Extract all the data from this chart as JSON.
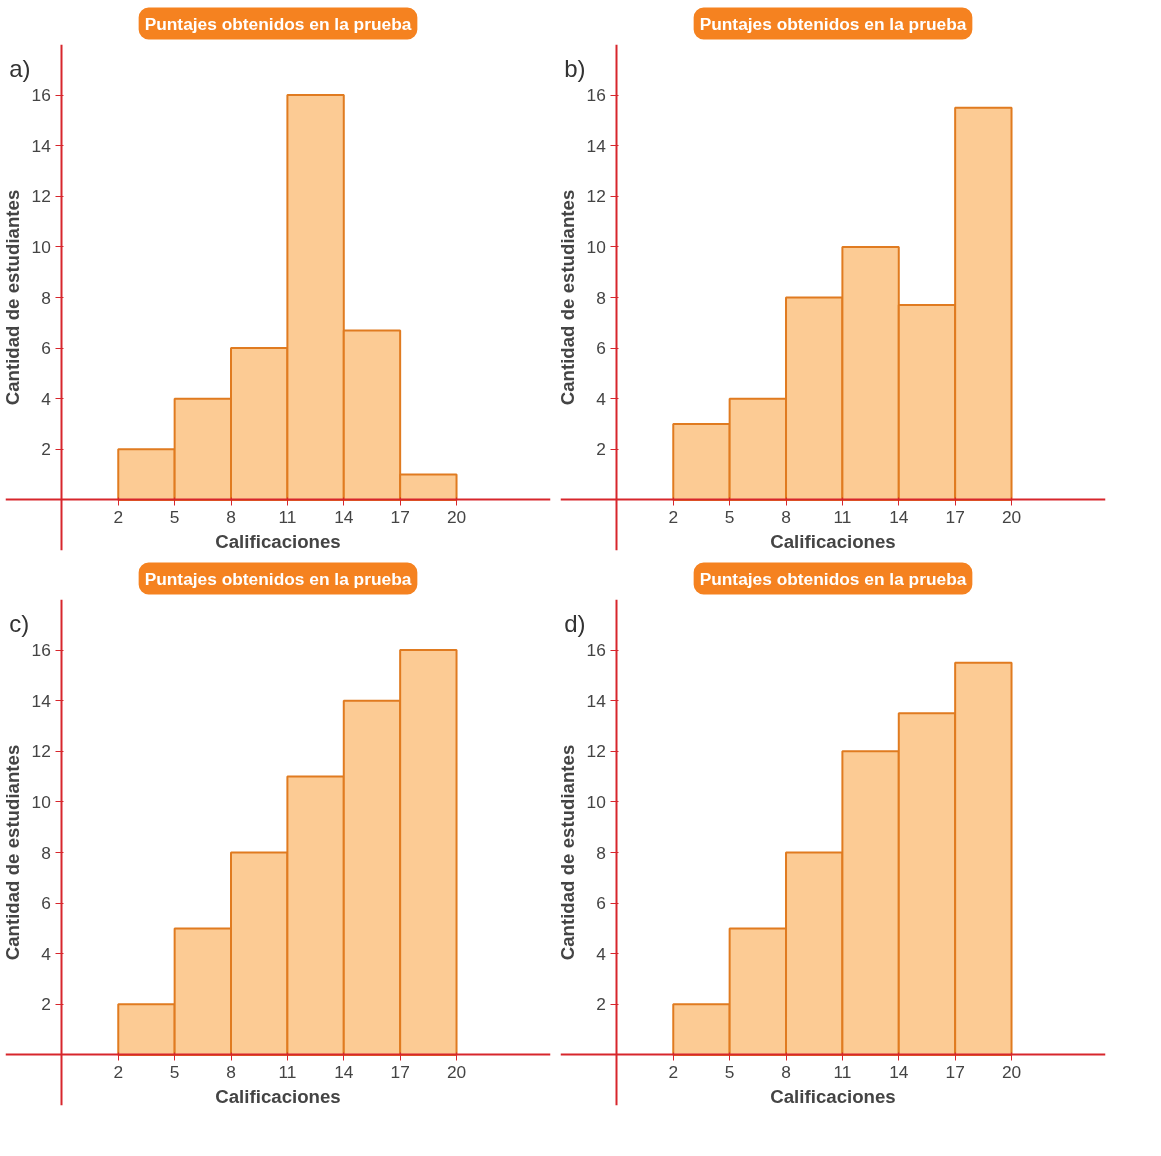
{
  "chart_data": [
    {
      "type": "histogram",
      "title": "Puntajes obtenidos en la prueba",
      "xlabel": "Calificaciones",
      "ylabel": "Cantidad de estudiantes",
      "annotations": [
        "a)"
      ],
      "bins": [
        2,
        5,
        8,
        11,
        14,
        17,
        20
      ],
      "values": [
        2,
        4,
        6,
        16,
        6.7,
        1
      ],
      "color": "#fccb94",
      "xlim": [
        -4,
        25
      ],
      "ylim": [
        -2,
        18
      ],
      "xticks": [
        2,
        5,
        8,
        11,
        14,
        17,
        20
      ],
      "yticks": [
        2,
        4,
        6,
        8,
        10,
        12,
        14,
        16
      ],
      "grid": false
    },
    {
      "type": "histogram",
      "title": "Puntajes obtenidos en la prueba",
      "xlabel": "Calificaciones",
      "ylabel": "Cantidad de estudiantes",
      "annotations": [
        "b)"
      ],
      "bins": [
        2,
        5,
        8,
        11,
        14,
        17,
        20
      ],
      "values": [
        3,
        4,
        8,
        10,
        7.7,
        15.5
      ],
      "color": "#fccb94",
      "xlim": [
        -4,
        25
      ],
      "ylim": [
        -2,
        18
      ],
      "xticks": [
        2,
        5,
        8,
        11,
        14,
        17,
        20
      ],
      "yticks": [
        2,
        4,
        6,
        8,
        10,
        12,
        14,
        16
      ],
      "grid": false
    },
    {
      "type": "histogram",
      "title": "Puntajes obtenidos en la prueba",
      "xlabel": "Calificaciones",
      "ylabel": "Cantidad de estudiantes",
      "annotations": [
        "c)"
      ],
      "bins": [
        2,
        5,
        8,
        11,
        14,
        17,
        20
      ],
      "values": [
        2,
        5,
        8,
        11,
        14,
        16
      ],
      "color": "#fccb94",
      "xlim": [
        -4,
        25
      ],
      "ylim": [
        -2,
        18
      ],
      "xticks": [
        2,
        5,
        8,
        11,
        14,
        17,
        20
      ],
      "yticks": [
        2,
        4,
        6,
        8,
        10,
        12,
        14,
        16
      ],
      "grid": false
    },
    {
      "type": "histogram",
      "title": "Puntajes obtenidos en la prueba",
      "xlabel": "Calificaciones",
      "ylabel": "Cantidad de estudiantes",
      "annotations": [
        "d)"
      ],
      "bins": [
        2,
        5,
        8,
        11,
        14,
        17,
        20
      ],
      "values": [
        2,
        5,
        8,
        12,
        13.5,
        15.5
      ],
      "color": "#fccb94",
      "xlim": [
        -4,
        25
      ],
      "ylim": [
        -2,
        18
      ],
      "xticks": [
        2,
        5,
        8,
        11,
        14,
        17,
        20
      ],
      "yticks": [
        2,
        4,
        6,
        8,
        10,
        12,
        14,
        16
      ],
      "grid": false
    }
  ]
}
